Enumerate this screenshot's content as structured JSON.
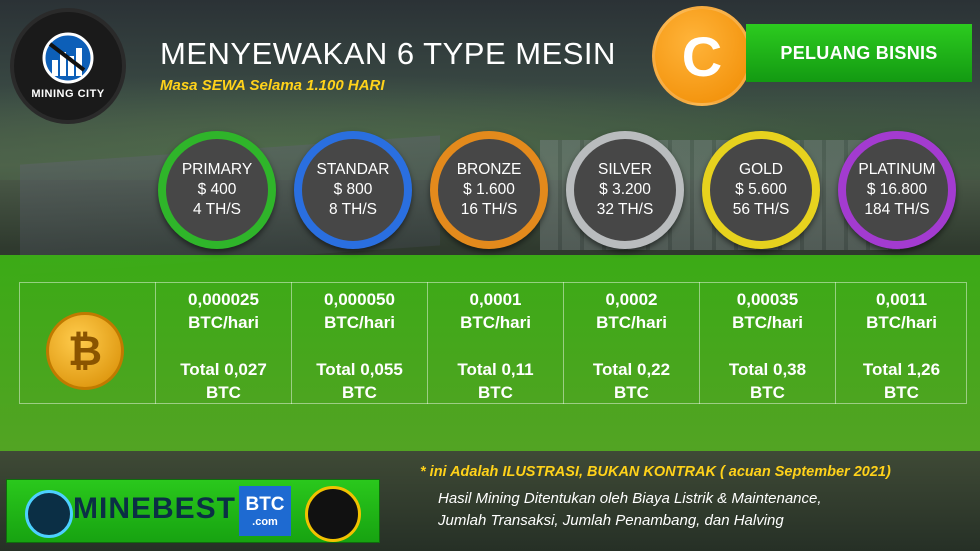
{
  "logo": {
    "text": "MINING CITY"
  },
  "header": {
    "title": "MENYEWAKAN 6 TYPE MESIN",
    "subtitle": "Masa SEWA Selama 1.100 HARI",
    "badge_letter": "C",
    "cta_label": "PELUANG BISNIS"
  },
  "machines": [
    {
      "name": "PRIMARY",
      "price": "$ 400",
      "hash": "4 TH/S",
      "color": "#2fb52a"
    },
    {
      "name": "STANDAR",
      "price": "$ 800",
      "hash": "8 TH/S",
      "color": "#2a6fe0"
    },
    {
      "name": "BRONZE",
      "price": "$ 1.600",
      "hash": "16 TH/S",
      "color": "#e38a1c"
    },
    {
      "name": "SILVER",
      "price": "$ 3.200",
      "hash": "32 TH/S",
      "color": "#b9bcbe"
    },
    {
      "name": "GOLD",
      "price": "$ 5.600",
      "hash": "56 TH/S",
      "color": "#e7d21e"
    },
    {
      "name": "PLATINUM",
      "price": "$ 16.800",
      "hash": "184 TH/S",
      "color": "#a33bd0"
    }
  ],
  "earnings": [
    {
      "daily": "0,000025\nBTC/hari",
      "total": "Total 0,027\nBTC"
    },
    {
      "daily": "0,000050\nBTC/hari",
      "total": "Total 0,055\nBTC"
    },
    {
      "daily": "0,0001\nBTC/hari",
      "total": "Total 0,11\nBTC"
    },
    {
      "daily": "0,0002\nBTC/hari",
      "total": "Total 0,22\nBTC"
    },
    {
      "daily": "0,00035\nBTC/hari",
      "total": "Total 0,38\nBTC"
    },
    {
      "daily": "0,0011\nBTC/hari",
      "total": "Total 1,26\nBTC"
    }
  ],
  "footer": {
    "brand": "MINEBEST",
    "btc_com_top": "BTC",
    "btc_com_bottom": ".com",
    "disclaimer": "* ini Adalah ILUSTRASI, BUKAN KONTRAK ( acuan September 2021)",
    "note_line1": "Hasil Mining Ditentukan oleh Biaya Listrik & Maintenance,",
    "note_line2": "Jumlah Transaksi, Jumlah Penambang, dan Halving"
  },
  "colors": {
    "accent_green": "#2ccb1f",
    "accent_orange": "#f08a00",
    "accent_yellow": "#ffd21a"
  }
}
